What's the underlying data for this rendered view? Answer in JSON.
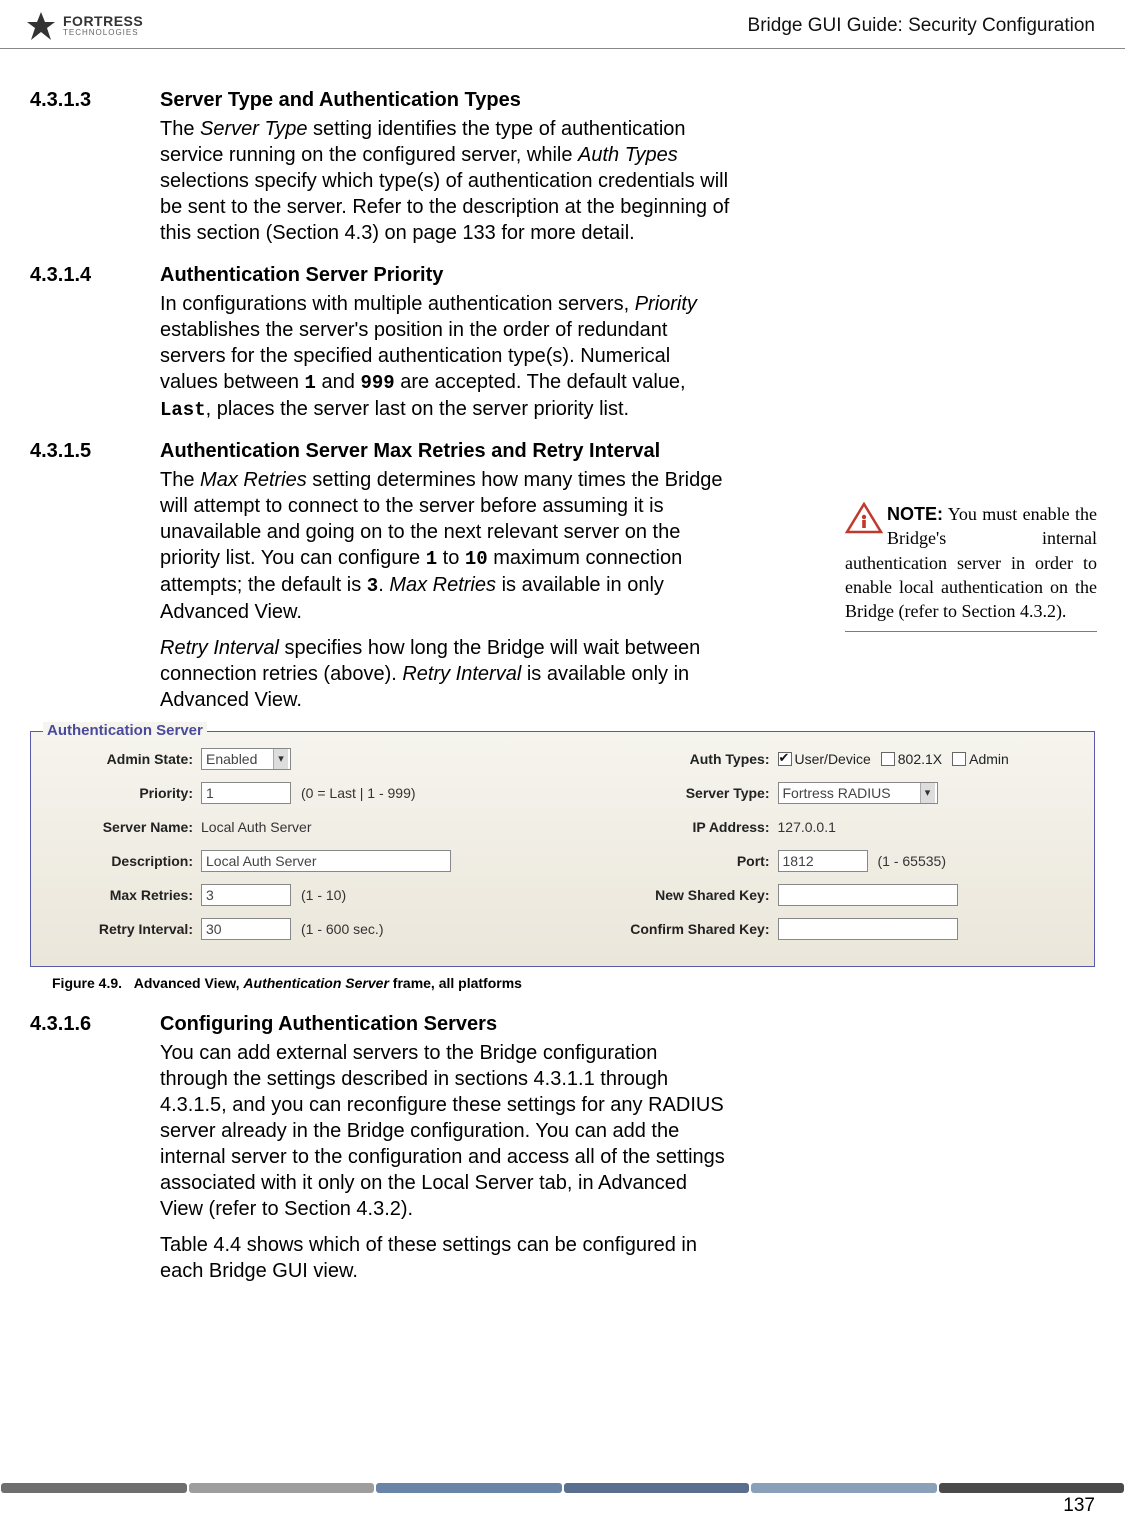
{
  "header": {
    "logo_top": "FORTRESS",
    "logo_sub": "TECHNOLOGIES",
    "title": "Bridge GUI Guide: Security Configuration"
  },
  "sections": [
    {
      "num": "4.3.1.3",
      "title": "Server Type and Authentication Types",
      "paras": [
        {
          "runs": [
            {
              "t": "The "
            },
            {
              "t": "Server Type",
              "i": true
            },
            {
              "t": " setting identifies the type of authentication service running on the configured server, while "
            },
            {
              "t": "Auth Types",
              "i": true
            },
            {
              "t": " selections specify which type(s) of authentication credentials will be sent to the server. Refer to the description at the beginning of this section (Section 4.3) on page 133 for more detail."
            }
          ]
        }
      ]
    },
    {
      "num": "4.3.1.4",
      "title": "Authentication Server Priority",
      "paras": [
        {
          "runs": [
            {
              "t": "In configurations with multiple authentication servers, "
            },
            {
              "t": "Priority",
              "i": true
            },
            {
              "t": " establishes the server's position in the order of redundant servers for the specified authentication type(s). Numerical values between "
            },
            {
              "t": "1",
              "m": true
            },
            {
              "t": " and "
            },
            {
              "t": "999",
              "m": true
            },
            {
              "t": " are accepted. The default value, "
            },
            {
              "t": "Last",
              "m": true
            },
            {
              "t": ", places the server last on the server priority list."
            }
          ]
        }
      ]
    },
    {
      "num": "4.3.1.5",
      "title": "Authentication Server Max Retries and Retry Interval",
      "paras": [
        {
          "runs": [
            {
              "t": "The "
            },
            {
              "t": "Max Retries",
              "i": true
            },
            {
              "t": " setting determines how many times the Bridge will attempt to connect to the server before assuming it is unavailable and going on to the next relevant server on the priority list. You can configure "
            },
            {
              "t": "1",
              "m": true
            },
            {
              "t": " to "
            },
            {
              "t": "10",
              "m": true
            },
            {
              "t": " maximum connection attempts; the default is "
            },
            {
              "t": "3",
              "m": true
            },
            {
              "t": ". "
            },
            {
              "t": "Max Retries",
              "i": true
            },
            {
              "t": " is available in only Advanced View."
            }
          ]
        },
        {
          "runs": [
            {
              "t": "Retry Interval",
              "i": true
            },
            {
              "t": " specifies how long the Bridge will wait between connection retries (above). "
            },
            {
              "t": "Retry Interval",
              "i": true
            },
            {
              "t": " is available only in Advanced View."
            }
          ]
        }
      ]
    }
  ],
  "note": {
    "label": "NOTE:",
    "text": " You must enable the Bridge's internal authentication server in order to enable local authentication on the Bridge (refer to Section 4.3.2)."
  },
  "screenshot": {
    "legend": "Authentication Server",
    "left": {
      "admin_state": {
        "label": "Admin State:",
        "value": "Enabled"
      },
      "priority": {
        "label": "Priority:",
        "value": "1",
        "hint": "(0 = Last | 1 - 999)"
      },
      "server_name": {
        "label": "Server Name:",
        "value": "Local Auth Server"
      },
      "description": {
        "label": "Description:",
        "value": "Local Auth Server"
      },
      "max_retries": {
        "label": "Max Retries:",
        "value": "3",
        "hint": "(1 - 10)"
      },
      "retry_interval": {
        "label": "Retry Interval:",
        "value": "30",
        "hint": "(1 - 600 sec.)"
      }
    },
    "right": {
      "auth_types": {
        "label": "Auth Types:",
        "cb1_checked": true,
        "cb1_label": "User/Device",
        "cb2_checked": false,
        "cb2_label": "802.1X",
        "cb3_checked": false,
        "cb3_label": "Admin"
      },
      "server_type": {
        "label": "Server Type:",
        "value": "Fortress RADIUS"
      },
      "ip_address": {
        "label": "IP Address:",
        "value": "127.0.0.1"
      },
      "port": {
        "label": "Port:",
        "value": "1812",
        "hint": "(1 - 65535)"
      },
      "new_shared_key": {
        "label": "New Shared Key:",
        "value": ""
      },
      "confirm_shared_key": {
        "label": "Confirm Shared Key:",
        "value": ""
      }
    }
  },
  "figure": {
    "num": "Figure 4.9.",
    "text_a": "Advanced View, ",
    "text_i": "Authentication Server",
    "text_b": " frame, all platforms"
  },
  "section6": {
    "num": "4.3.1.6",
    "title": "Configuring Authentication Servers",
    "paras": [
      {
        "runs": [
          {
            "t": "You can add external servers to the Bridge configuration through the settings described in sections 4.3.1.1 through 4.3.1.5, and you can reconfigure these settings for any RADIUS server already in the Bridge configuration. You can add the internal server to the configuration and access all of the settings associated with it only on the "
          },
          {
            "t": "Local Server",
            "sans": true
          },
          {
            "t": " tab, in Advanced View (refer to Section 4.3.2)."
          }
        ]
      },
      {
        "runs": [
          {
            "t": "Table 4.4 shows which of these settings can be configured in each Bridge GUI view."
          }
        ]
      }
    ]
  },
  "stripe_colors": [
    "#6e6e6e",
    "#9e9e9e",
    "#6a84a8",
    "#5a6f8f",
    "#8aa0b8",
    "#4a4a4a"
  ],
  "page_number": "137"
}
